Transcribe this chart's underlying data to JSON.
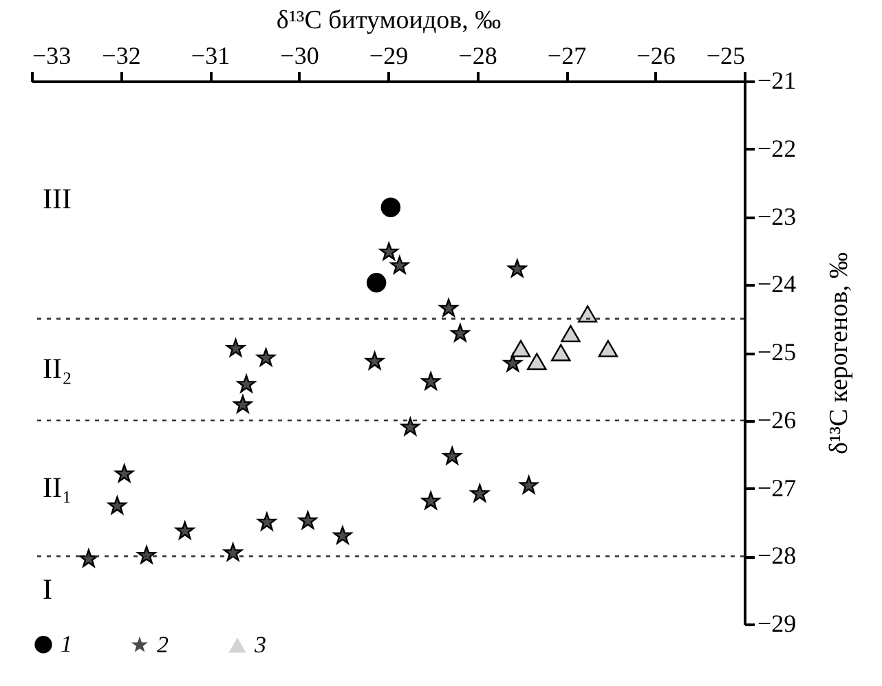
{
  "chart_data": {
    "type": "scatter",
    "xlabel": "δ¹³C битумоидов, ‰",
    "ylabel": "δ¹³C керогенов, ‰",
    "xlim": [
      -33,
      -25
    ],
    "xticks": [
      -33,
      -32,
      -31,
      -30,
      -29,
      -28,
      -27,
      -26,
      -25
    ],
    "ylim": [
      -29,
      -21
    ],
    "yticks": [
      -29,
      -28,
      -27,
      -26,
      -25,
      -24,
      -23,
      -22,
      -21
    ],
    "grid": false,
    "legend": "bottom",
    "ref_lines": [
      {
        "axis": "y",
        "value": -24.5,
        "color": "#333333",
        "line_style": "dotted"
      },
      {
        "axis": "y",
        "value": -26,
        "color": "#333333",
        "line_style": "dotted"
      },
      {
        "axis": "y",
        "value": -28,
        "color": "#333333",
        "line_style": "dotted"
      }
    ],
    "annotations": [
      "III",
      "II₂",
      "II₁",
      "I"
    ],
    "series": [
      {
        "name": "1",
        "color": "#000000",
        "marker": "circle",
        "x": [
          -28.97,
          -29.13
        ],
        "values": [
          -22.86,
          -23.97
        ]
      },
      {
        "name": "2",
        "color": "#4a4a4a",
        "marker": "star",
        "x": [
          -28.99,
          -28.87,
          -30.71,
          -30.37,
          -30.59,
          -30.63,
          -29.15,
          -28.52,
          -28.75,
          -31.96,
          -32.04,
          -32.36,
          -31.71,
          -31.28,
          -30.74,
          -30.36,
          -29.9,
          -29.51,
          -28.52,
          -27.55,
          -28.32,
          -28.19,
          -27.6,
          -28.28,
          -27.97,
          -27.42
        ],
        "values": [
          -23.52,
          -23.72,
          -24.94,
          -25.08,
          -25.47,
          -25.77,
          -25.13,
          -25.43,
          -26.1,
          -26.79,
          -27.26,
          -28.04,
          -27.99,
          -27.63,
          -27.95,
          -27.5,
          -27.48,
          -27.7,
          -27.19,
          -23.77,
          -24.35,
          -24.72,
          -25.16,
          -26.53,
          -27.08,
          -26.96
        ]
      },
      {
        "name": "3",
        "color": "#d3d3d3",
        "marker": "triangle",
        "x": [
          -27.51,
          -27.33,
          -27.06,
          -26.95,
          -26.76,
          -26.53
        ],
        "values": [
          -24.94,
          -25.13,
          -25,
          -24.72,
          -24.43,
          -24.94
        ]
      }
    ]
  }
}
